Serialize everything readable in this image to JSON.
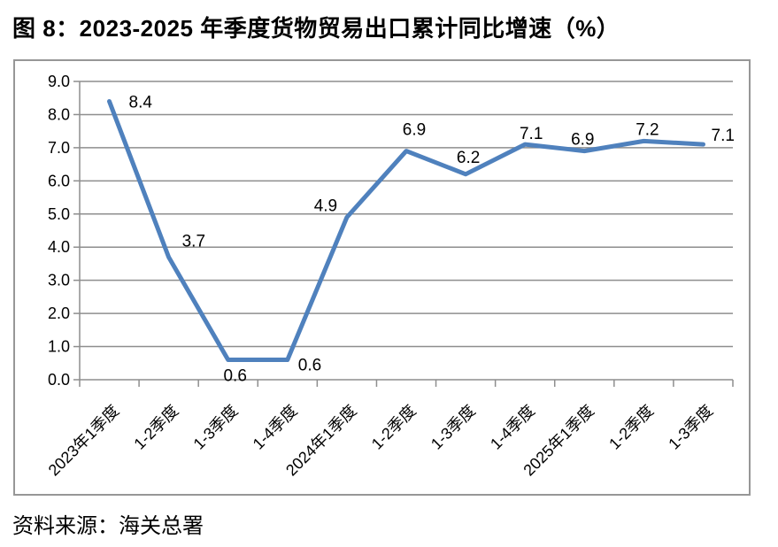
{
  "figure": {
    "title": "图 8：2023-2025 年季度货物贸易出口累计同比增速（%）",
    "source": "资料来源：海关总署"
  },
  "chart_data": {
    "type": "line",
    "title": "图 8：2023-2025 年季度货物贸易出口累计同比增速（%）",
    "source": "资料来源：海关总署",
    "categories": [
      "2023年1季度",
      "1-2季度",
      "1-3季度",
      "1-4季度",
      "2024年1季度",
      "1-2季度",
      "1-3季度",
      "1-4季度",
      "2025年1季度",
      "1-2季度",
      "1-3季度"
    ],
    "values": [
      8.4,
      3.7,
      0.6,
      0.6,
      4.9,
      6.9,
      6.2,
      7.1,
      6.9,
      7.2,
      7.1
    ],
    "data_labels": [
      "8.4",
      "3.7",
      "0.6",
      "0.6",
      "4.9",
      "6.9",
      "6.2",
      "7.1",
      "6.9",
      "7.2",
      "7.1"
    ],
    "xlabel": "",
    "ylabel": "",
    "ylim": [
      0,
      9
    ],
    "ytick_step": 1,
    "ytick_labels": [
      "0.0",
      "1.0",
      "2.0",
      "3.0",
      "4.0",
      "5.0",
      "6.0",
      "7.0",
      "8.0",
      "9.0"
    ],
    "grid": true,
    "legend_position": "none",
    "line_color": "#4F81BD",
    "grid_color": "#8E8E8E",
    "text_color": "#000000"
  }
}
